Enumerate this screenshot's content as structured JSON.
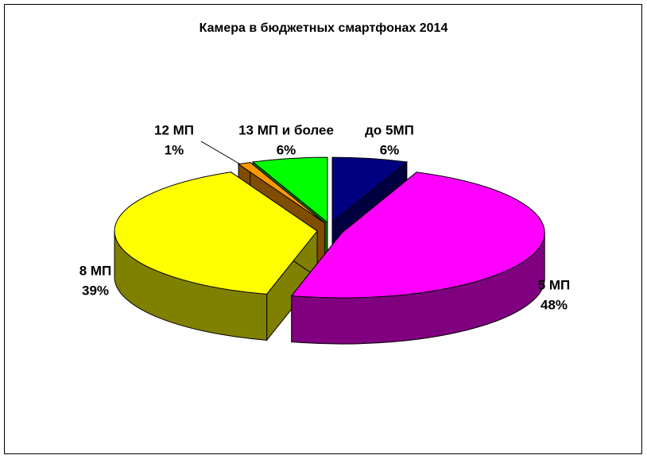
{
  "chart_data": {
    "type": "pie3d",
    "title": "Камера в бюджетных смартфонах 2014",
    "categories": [
      "до 5МП",
      "5 МП",
      "8 МП",
      "12 МП",
      "13 МП и более"
    ],
    "values": [
      6,
      48,
      39,
      1,
      6
    ],
    "value_labels": [
      "6%",
      "48%",
      "39%",
      "1%",
      "6%"
    ],
    "colors": [
      "#000080",
      "#ff00ff",
      "#ffff00",
      "#ff9900",
      "#00ff00"
    ]
  }
}
